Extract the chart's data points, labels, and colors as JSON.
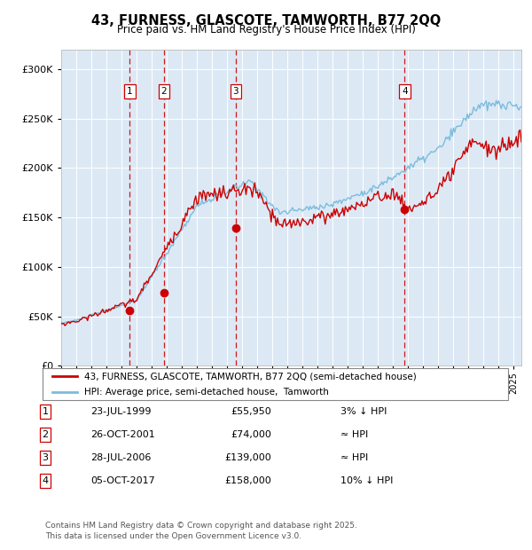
{
  "title": "43, FURNESS, GLASCOTE, TAMWORTH, B77 2QQ",
  "subtitle": "Price paid vs. HM Land Registry's House Price Index (HPI)",
  "background_color": "#dce9f5",
  "legend_line1": "43, FURNESS, GLASCOTE, TAMWORTH, B77 2QQ (semi-detached house)",
  "legend_line2": "HPI: Average price, semi-detached house,  Tamworth",
  "footer": "Contains HM Land Registry data © Crown copyright and database right 2025.\nThis data is licensed under the Open Government Licence v3.0.",
  "sale_markers": [
    {
      "num": 1,
      "date": "23-JUL-1999",
      "price": "£55,950",
      "year": 1999.55,
      "note": "3% ↓ HPI"
    },
    {
      "num": 2,
      "date": "26-OCT-2001",
      "price": "£74,000",
      "year": 2001.82,
      "note": "≈ HPI"
    },
    {
      "num": 3,
      "date": "28-JUL-2006",
      "price": "£139,000",
      "year": 2006.57,
      "note": "≈ HPI"
    },
    {
      "num": 4,
      "date": "05-OCT-2017",
      "price": "£158,000",
      "year": 2017.76,
      "note": "10% ↓ HPI"
    }
  ],
  "sale_prices_num": [
    55950,
    74000,
    139000,
    158000
  ],
  "hpi_color": "#7bbcdd",
  "price_color": "#cc0000",
  "vline_color": "#cc0000",
  "ylim": [
    0,
    320000
  ],
  "yticks": [
    0,
    50000,
    100000,
    150000,
    200000,
    250000,
    300000
  ],
  "xlim_start": 1995.0,
  "xlim_end": 2025.5
}
